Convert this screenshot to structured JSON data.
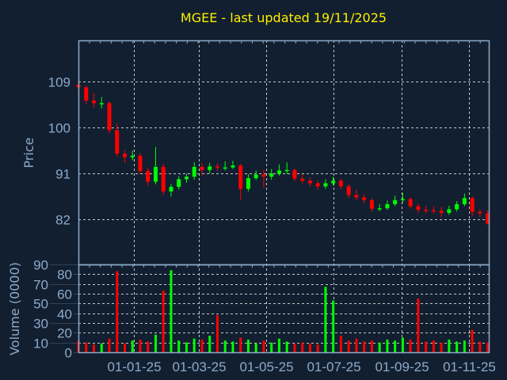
{
  "chart_data": {
    "type": "candlestick",
    "title": "MGEE - last updated 19/11/2025",
    "ylabel": "Price",
    "ylabel_volume": "Volume (0000)",
    "ylim": [
      73.2,
      117.1
    ],
    "volume_ylim": [
      0,
      90
    ],
    "yticks": [
      109,
      100,
      91,
      82
    ],
    "volume_yticks": [
      0,
      10,
      20,
      30,
      40,
      50,
      60,
      70,
      80,
      90
    ],
    "xticks": [
      {
        "date": "2025-01-01",
        "label": "01-01-25"
      },
      {
        "date": "2025-03-01",
        "label": "01-03-25"
      },
      {
        "date": "2025-05-01",
        "label": "01-05-25"
      },
      {
        "date": "2025-07-01",
        "label": "01-07-25"
      },
      {
        "date": "2025-09-01",
        "label": "01-09-25"
      },
      {
        "date": "2025-11-01",
        "label": "01-11-25"
      }
    ],
    "xlim": [
      "2024-11-12",
      "2025-11-19"
    ],
    "grid": true,
    "colors": {
      "up": "#00ff00",
      "down": "#ff0000",
      "title": "#ffee00",
      "axis": "#8fa9c9",
      "background": "#111f30"
    },
    "candles_columns": [
      "date",
      "open",
      "high",
      "low",
      "close",
      "volume"
    ],
    "candles": [
      [
        "2024-11-12",
        108.4,
        109.3,
        106.5,
        107.9,
        12
      ],
      [
        "2024-11-19",
        107.9,
        108.2,
        104.6,
        105.3,
        10
      ],
      [
        "2024-11-26",
        105.3,
        106.8,
        103.9,
        104.8,
        8
      ],
      [
        "2024-12-03",
        104.8,
        106.0,
        103.8,
        104.8,
        9
      ],
      [
        "2024-12-10",
        104.8,
        105.2,
        98.9,
        99.5,
        14
      ],
      [
        "2024-12-17",
        99.5,
        100.9,
        94.3,
        94.9,
        83
      ],
      [
        "2024-12-24",
        94.9,
        95.6,
        93.1,
        94.2,
        9
      ],
      [
        "2024-12-31",
        94.2,
        95.5,
        93.6,
        94.5,
        12
      ],
      [
        "2025-01-07",
        94.5,
        95.0,
        90.8,
        91.5,
        13
      ],
      [
        "2025-01-14",
        91.5,
        92.2,
        88.6,
        89.4,
        11
      ],
      [
        "2025-01-21",
        89.4,
        96.2,
        88.9,
        92.3,
        18
      ],
      [
        "2025-01-28",
        92.3,
        92.9,
        86.8,
        87.5,
        63
      ],
      [
        "2025-02-04",
        87.5,
        89.0,
        86.5,
        88.4,
        84
      ],
      [
        "2025-02-11",
        88.4,
        90.5,
        87.9,
        89.9,
        12
      ],
      [
        "2025-02-18",
        89.9,
        91.0,
        89.2,
        90.4,
        10
      ],
      [
        "2025-02-25",
        90.4,
        93.2,
        89.8,
        92.3,
        14
      ],
      [
        "2025-03-04",
        92.3,
        93.0,
        90.6,
        91.7,
        13
      ],
      [
        "2025-03-11",
        91.7,
        93.1,
        91.0,
        92.4,
        17
      ],
      [
        "2025-03-18",
        92.4,
        93.0,
        91.5,
        92.2,
        38
      ],
      [
        "2025-03-25",
        92.2,
        93.4,
        91.6,
        92.2,
        12
      ],
      [
        "2025-04-01",
        92.2,
        93.5,
        91.9,
        92.6,
        11
      ],
      [
        "2025-04-08",
        92.6,
        92.9,
        85.9,
        88.0,
        15
      ],
      [
        "2025-04-15",
        88.0,
        90.9,
        87.5,
        90.1,
        13
      ],
      [
        "2025-04-22",
        90.1,
        91.6,
        89.7,
        90.8,
        9
      ],
      [
        "2025-04-29",
        90.8,
        91.7,
        88.2,
        90.4,
        12
      ],
      [
        "2025-05-06",
        90.4,
        91.9,
        89.8,
        91.0,
        10
      ],
      [
        "2025-05-13",
        91.0,
        92.8,
        90.6,
        91.6,
        14
      ],
      [
        "2025-05-20",
        91.6,
        93.2,
        90.9,
        91.7,
        11
      ],
      [
        "2025-05-27",
        91.7,
        92.0,
        89.5,
        90.0,
        9
      ],
      [
        "2025-06-03",
        90.0,
        90.8,
        89.0,
        89.6,
        10
      ],
      [
        "2025-06-10",
        89.6,
        90.2,
        88.4,
        89.1,
        9
      ],
      [
        "2025-06-17",
        89.1,
        89.6,
        87.8,
        88.5,
        8
      ],
      [
        "2025-06-24",
        88.5,
        89.9,
        88.0,
        89.1,
        67
      ],
      [
        "2025-07-01",
        89.1,
        90.4,
        88.6,
        89.6,
        53
      ],
      [
        "2025-07-08",
        89.6,
        90.0,
        87.9,
        88.5,
        17
      ],
      [
        "2025-07-15",
        88.5,
        88.9,
        86.2,
        86.8,
        12
      ],
      [
        "2025-07-22",
        86.8,
        87.9,
        85.8,
        86.3,
        14
      ],
      [
        "2025-07-29",
        86.3,
        86.9,
        85.1,
        85.8,
        11
      ],
      [
        "2025-08-05",
        85.8,
        86.2,
        83.5,
        84.1,
        12
      ],
      [
        "2025-08-12",
        84.1,
        85.0,
        83.6,
        84.2,
        10
      ],
      [
        "2025-08-19",
        84.2,
        85.7,
        83.9,
        85.0,
        13
      ],
      [
        "2025-08-26",
        85.0,
        86.7,
        84.6,
        85.8,
        12
      ],
      [
        "2025-09-02",
        85.8,
        87.2,
        85.3,
        86.0,
        15
      ],
      [
        "2025-09-09",
        86.0,
        86.4,
        84.1,
        84.6,
        13
      ],
      [
        "2025-09-16",
        84.6,
        85.2,
        83.3,
        83.9,
        55
      ],
      [
        "2025-09-23",
        83.9,
        84.7,
        83.2,
        83.8,
        11
      ],
      [
        "2025-09-30",
        83.8,
        84.6,
        83.1,
        83.7,
        12
      ],
      [
        "2025-10-07",
        83.7,
        84.5,
        82.4,
        83.3,
        10
      ],
      [
        "2025-10-14",
        83.3,
        84.7,
        82.9,
        84.0,
        13
      ],
      [
        "2025-10-21",
        84.0,
        85.6,
        83.6,
        85.0,
        11
      ],
      [
        "2025-10-28",
        85.0,
        87.1,
        84.6,
        86.2,
        12
      ],
      [
        "2025-11-04",
        86.2,
        86.5,
        82.6,
        83.5,
        23
      ],
      [
        "2025-11-11",
        83.5,
        84.0,
        82.5,
        83.2,
        11
      ],
      [
        "2025-11-18",
        83.2,
        83.9,
        81.0,
        81.2,
        10
      ]
    ]
  }
}
